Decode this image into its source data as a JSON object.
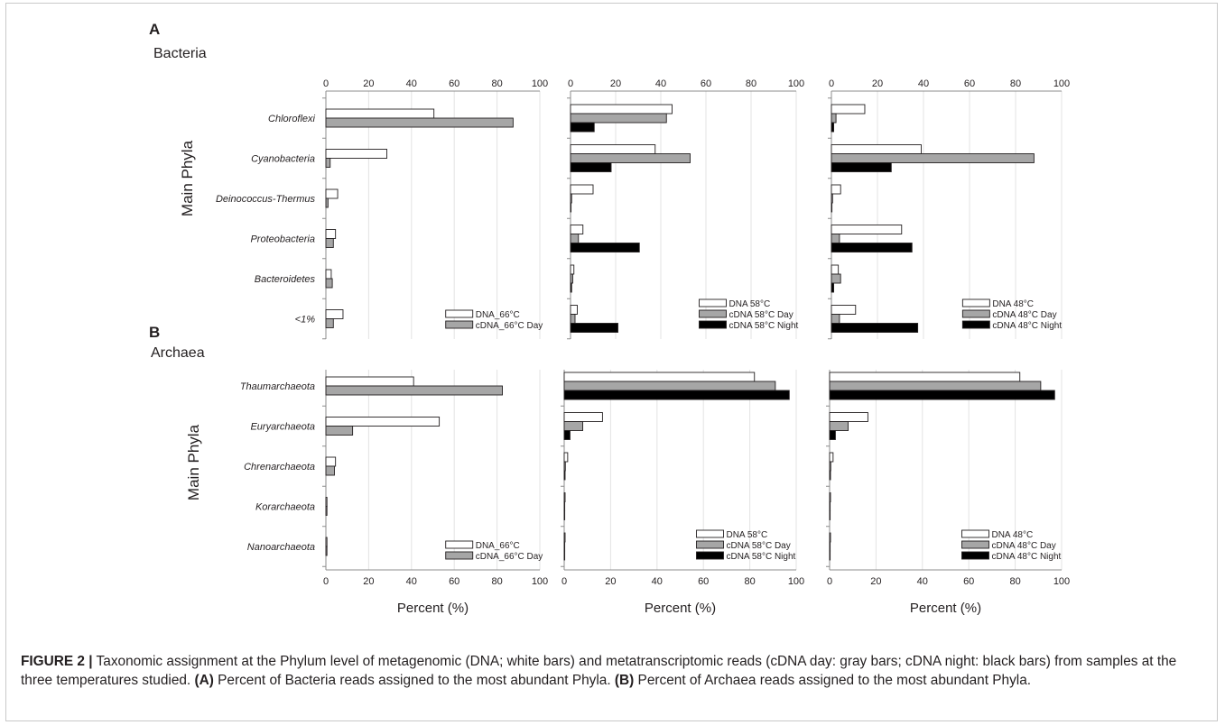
{
  "figure": {
    "caption": {
      "label": "FIGURE 2 |",
      "part1": " Taxonomic assignment at the Phylum level of metagenomic (DNA; white bars) and metatranscriptomic reads (cDNA day: gray bars; cDNA night: black bars) from samples at the three temperatures studied. ",
      "ref_a": "(A)",
      "part2": " Percent of Bacteria reads assigned to the most abundant Phyla. ",
      "ref_b": "(B)",
      "part3": " Percent of Archaea reads assigned to the most abundant Phyla."
    }
  },
  "colors": {
    "dna": "#ffffff",
    "cdna_day": "#a6a6a6",
    "cdna_night": "#000000",
    "grid": "#e3e3e3",
    "axis": "#8c8c8c"
  },
  "chart_data": [
    {
      "type": "bar",
      "orientation": "horizontal",
      "panel_label": "A",
      "panel_title": "Bacteria",
      "ylabel": "Main Phyla",
      "categories": [
        "Chloroflexi",
        "Cyanobacteria",
        "Deinococcus-Thermus",
        "Proteobacteria",
        "Bacteroidetes",
        "<1%"
      ],
      "xlim": [
        0,
        100
      ],
      "xticks": [
        "0",
        "20",
        "40",
        "60",
        "80",
        "100"
      ],
      "xticks_position": "top",
      "grid": true,
      "legend_position": "bottom-right",
      "series": [
        {
          "name": "DNA_66°C",
          "color": "#ffffff",
          "values": [
            50.5,
            28.5,
            5.5,
            4.5,
            2.5,
            8
          ]
        },
        {
          "name": "cDNA_66°C Day",
          "color": "#a6a6a6",
          "values": [
            87.5,
            2,
            1,
            3.5,
            3,
            3.5
          ]
        }
      ]
    },
    {
      "type": "bar",
      "orientation": "horizontal",
      "categories": [
        "Chloroflexi",
        "Cyanobacteria",
        "Deinococcus-Thermus",
        "Proteobacteria",
        "Bacteroidetes",
        "<1%"
      ],
      "xlim": [
        0,
        100
      ],
      "xticks": [
        "0",
        "20",
        "40",
        "60",
        "80",
        "100"
      ],
      "xticks_position": "top",
      "grid": true,
      "legend_position": "bottom-right",
      "series": [
        {
          "name": "DNA 58°C",
          "color": "#ffffff",
          "values": [
            45,
            37.5,
            10,
            5.5,
            1.5,
            3
          ]
        },
        {
          "name": "cDNA 58°C Day",
          "color": "#a6a6a6",
          "values": [
            42.5,
            53,
            0.5,
            3.5,
            1,
            2
          ]
        },
        {
          "name": "cDNA 58°C Night",
          "color": "#000000",
          "values": [
            10.5,
            18,
            0,
            30.5,
            0.5,
            21
          ]
        }
      ]
    },
    {
      "type": "bar",
      "orientation": "horizontal",
      "categories": [
        "Chloroflexi",
        "Cyanobacteria",
        "Deinococcus-Thermus",
        "Proteobacteria",
        "Bacteroidetes",
        "<1%"
      ],
      "xlim": [
        0,
        100
      ],
      "xticks": [
        "0",
        "20",
        "40",
        "60",
        "80",
        "100"
      ],
      "xticks_position": "top",
      "grid": true,
      "legend_position": "bottom-right",
      "series": [
        {
          "name": "DNA 48°C",
          "color": "#ffffff",
          "values": [
            14.5,
            39,
            4,
            30.5,
            3,
            10.5
          ]
        },
        {
          "name": "cDNA 48°C Day",
          "color": "#a6a6a6",
          "values": [
            2,
            88,
            0.5,
            3.5,
            4,
            3.5
          ]
        },
        {
          "name": "cDNA 48°C Night",
          "color": "#000000",
          "values": [
            1,
            26,
            0,
            35,
            1,
            37.5
          ]
        }
      ]
    },
    {
      "type": "bar",
      "orientation": "horizontal",
      "panel_label": "B",
      "panel_title": "Archaea",
      "ylabel": "Main Phyla",
      "xlabel": "Percent (%)",
      "categories": [
        "Thaumarchaeota",
        "Euryarchaeota",
        "Chrenarchaeota",
        "Korarchaeota",
        "Nanoarchaeota"
      ],
      "xlim": [
        0,
        100
      ],
      "xticks": [
        "0",
        "20",
        "40",
        "60",
        "80",
        "100"
      ],
      "xticks_position": "bottom",
      "grid": true,
      "legend_position": "bottom-right",
      "series": [
        {
          "name": "DNA_66°C",
          "color": "#ffffff",
          "values": [
            41,
            53,
            4.5,
            0.5,
            0.5
          ]
        },
        {
          "name": "cDNA_66°C Day",
          "color": "#a6a6a6",
          "values": [
            82.5,
            12.5,
            4,
            0.5,
            0.5
          ]
        }
      ]
    },
    {
      "type": "bar",
      "orientation": "horizontal",
      "xlabel": "Percent (%)",
      "categories": [
        "Thaumarchaeota",
        "Euryarchaeota",
        "Chrenarchaeota",
        "Korarchaeota",
        "Nanoarchaeota"
      ],
      "xlim": [
        0,
        100
      ],
      "xticks": [
        "0",
        "20",
        "40",
        "60",
        "80",
        "100"
      ],
      "xticks_position": "bottom",
      "grid": true,
      "legend_position": "bottom-right",
      "series": [
        {
          "name": "DNA 58°C",
          "color": "#ffffff",
          "values": [
            82,
            16.5,
            1.5,
            0.3,
            0.3
          ]
        },
        {
          "name": "cDNA 58°C Day",
          "color": "#a6a6a6",
          "values": [
            91,
            8,
            0.5,
            0,
            0
          ]
        },
        {
          "name": "cDNA 58°C Night",
          "color": "#000000",
          "values": [
            97,
            2.5,
            0.3,
            0,
            0
          ]
        }
      ]
    },
    {
      "type": "bar",
      "orientation": "horizontal",
      "xlabel": "Percent (%)",
      "categories": [
        "Thaumarchaeota",
        "Euryarchaeota",
        "Chrenarchaeota",
        "Korarchaeota",
        "Nanoarchaeota"
      ],
      "xlim": [
        0,
        100
      ],
      "xticks": [
        "0",
        "20",
        "40",
        "60",
        "80",
        "100"
      ],
      "xticks_position": "bottom",
      "grid": true,
      "legend_position": "bottom-right",
      "series": [
        {
          "name": "DNA 48°C",
          "color": "#ffffff",
          "values": [
            82,
            16.5,
            1.5,
            0.3,
            0.3
          ]
        },
        {
          "name": "cDNA 48°C Day",
          "color": "#a6a6a6",
          "values": [
            91,
            8,
            0.5,
            0,
            0
          ]
        },
        {
          "name": "cDNA 48°C Night",
          "color": "#000000",
          "values": [
            97,
            2.5,
            0.3,
            0,
            0
          ]
        }
      ]
    }
  ]
}
